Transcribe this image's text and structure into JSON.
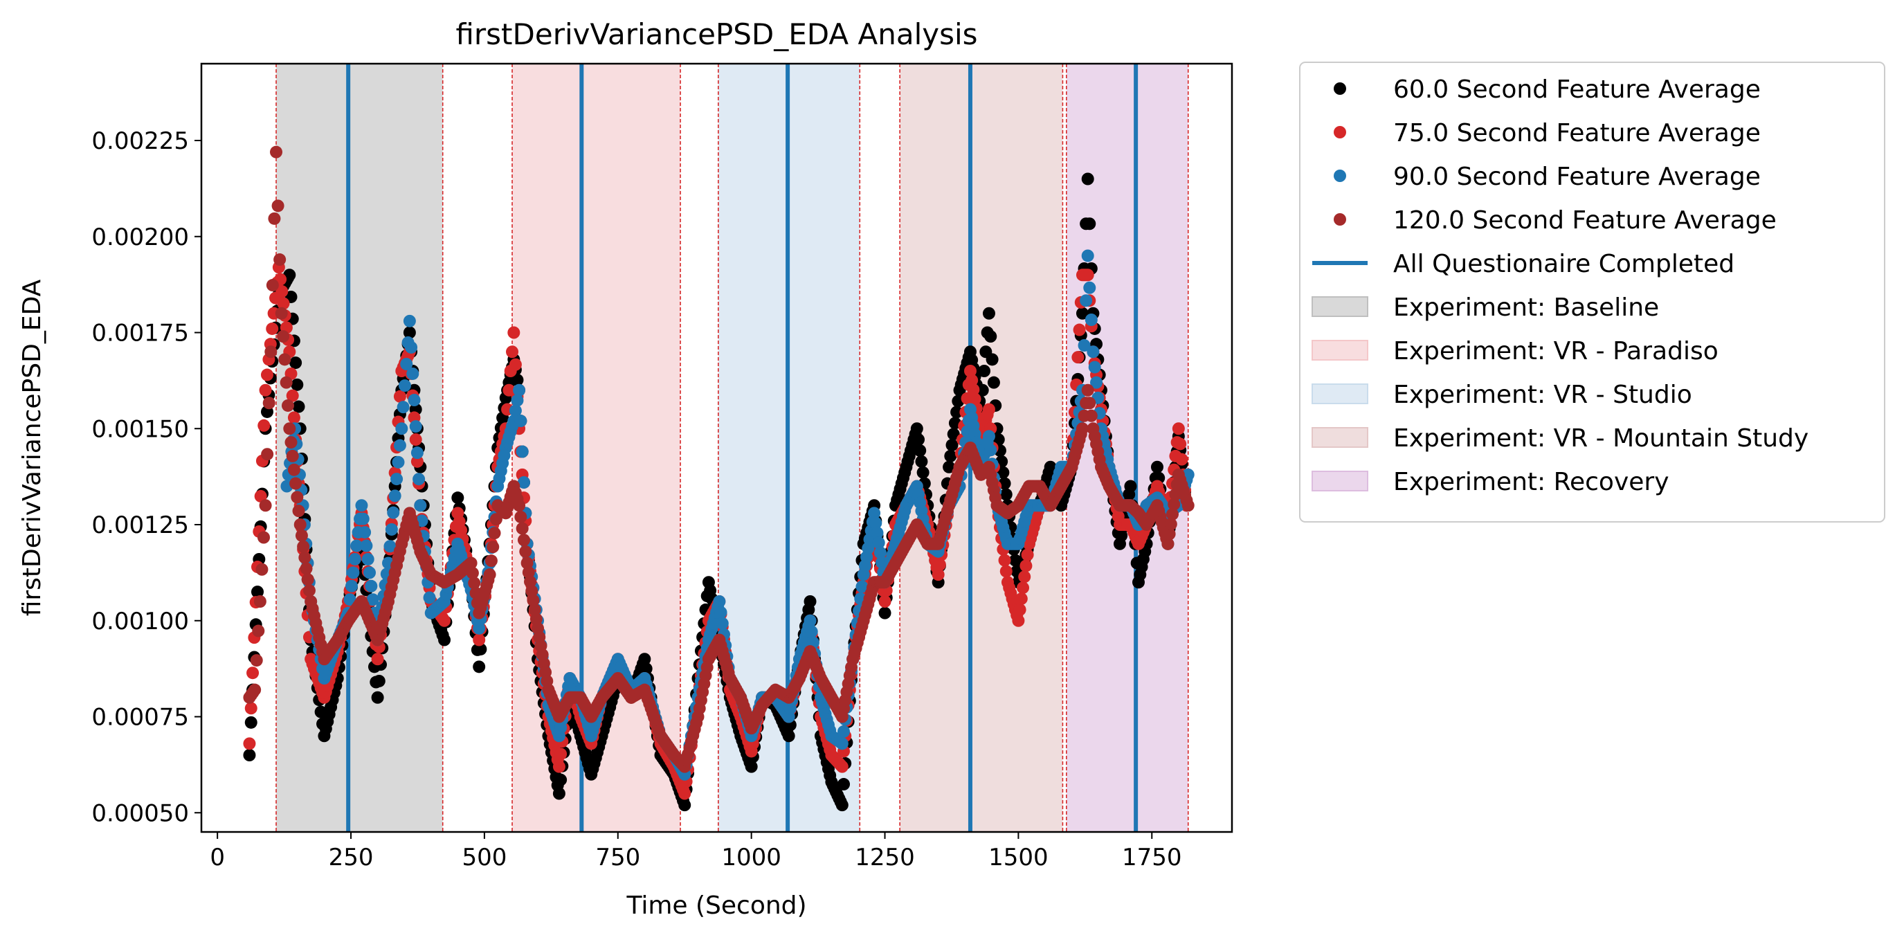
{
  "chart_data": {
    "type": "scatter",
    "title": "firstDerivVariancePSD_EDA Analysis",
    "xlabel": "Time (Second)",
    "ylabel": "firstDerivVariancePSD_EDA",
    "xlim": [
      -30,
      1900
    ],
    "ylim": [
      0.00045,
      0.00245
    ],
    "x_ticks": [
      0,
      250,
      500,
      750,
      1000,
      1250,
      1500,
      1750
    ],
    "y_ticks": [
      0.0005,
      0.00075,
      0.001,
      0.00125,
      0.0015,
      0.00175,
      0.002,
      0.00225
    ],
    "y_tick_labels": [
      "0.00050",
      "0.00075",
      "0.00100",
      "0.00125",
      "0.00150",
      "0.00175",
      "0.00200",
      "0.00225"
    ],
    "grid": false,
    "legend_position": "outside right, top",
    "experiments": [
      {
        "name": "Experiment: Baseline",
        "start": 110,
        "end": 422,
        "color": "#bfbfbf"
      },
      {
        "name": "Experiment: VR - Paradiso",
        "start": 552,
        "end": 867,
        "color": "#f4c7c9"
      },
      {
        "name": "Experiment: VR - Studio",
        "start": 938,
        "end": 1203,
        "color": "#c9dcec"
      },
      {
        "name": "Experiment: VR - Mountain Study",
        "start": 1278,
        "end": 1583,
        "color": "#e4c7c7"
      },
      {
        "name": "Experiment: Recovery",
        "start": 1590,
        "end": 1818,
        "color": "#ddbddf"
      }
    ],
    "questionnaire_label": "All Questionaire Completed",
    "questionnaire_color": "#1f77b4",
    "questionnaire_times": [
      245,
      682,
      1068,
      1410,
      1720
    ],
    "boundary_color": "#d62728",
    "boundary_times": [
      110,
      422,
      552,
      682,
      867,
      938,
      1203,
      1278,
      1583,
      1590,
      1818
    ],
    "series": [
      {
        "name": "60.0 Second Feature Average",
        "color": "#000000",
        "x": [
          60,
          90,
          115,
          135,
          155,
          175,
          200,
          225,
          245,
          270,
          300,
          320,
          345,
          360,
          380,
          400,
          425,
          450,
          475,
          490,
          510,
          525,
          540,
          555,
          565,
          580,
          600,
          620,
          640,
          660,
          680,
          700,
          720,
          750,
          775,
          800,
          830,
          855,
          875,
          900,
          920,
          940,
          960,
          980,
          1000,
          1020,
          1045,
          1070,
          1090,
          1110,
          1130,
          1150,
          1170,
          1190,
          1210,
          1230,
          1250,
          1270,
          1290,
          1310,
          1330,
          1350,
          1370,
          1390,
          1410,
          1430,
          1445,
          1460,
          1480,
          1500,
          1520,
          1540,
          1560,
          1580,
          1600,
          1620,
          1630,
          1640,
          1655,
          1670,
          1690,
          1710,
          1725,
          1740,
          1760,
          1780,
          1800,
          1815
        ],
        "y": [
          0.00065,
          0.0015,
          0.00185,
          0.0019,
          0.0015,
          0.00095,
          0.0007,
          0.00085,
          0.00105,
          0.0012,
          0.0008,
          0.0011,
          0.0016,
          0.00175,
          0.0014,
          0.00105,
          0.00095,
          0.00132,
          0.0011,
          0.00088,
          0.0012,
          0.00145,
          0.00158,
          0.00168,
          0.0016,
          0.0012,
          0.0009,
          0.0007,
          0.00055,
          0.0008,
          0.0007,
          0.0006,
          0.0007,
          0.00085,
          0.0008,
          0.0009,
          0.00065,
          0.0006,
          0.00052,
          0.00085,
          0.0011,
          0.00095,
          0.0008,
          0.0007,
          0.00062,
          0.0008,
          0.00078,
          0.0007,
          0.0009,
          0.00105,
          0.0007,
          0.00058,
          0.00052,
          0.0009,
          0.0012,
          0.0013,
          0.00102,
          0.0013,
          0.0014,
          0.0015,
          0.0013,
          0.0011,
          0.0014,
          0.0016,
          0.0017,
          0.00155,
          0.0018,
          0.0015,
          0.0013,
          0.0011,
          0.0012,
          0.0013,
          0.0014,
          0.0013,
          0.0014,
          0.0018,
          0.00215,
          0.0018,
          0.0016,
          0.0014,
          0.0012,
          0.00135,
          0.0011,
          0.0012,
          0.0014,
          0.0012,
          0.00148,
          0.0013
        ]
      },
      {
        "name": "75.0 Second Feature Average",
        "color": "#d62728",
        "x": [
          60,
          90,
          115,
          135,
          155,
          175,
          200,
          225,
          245,
          270,
          300,
          320,
          345,
          360,
          380,
          400,
          425,
          450,
          475,
          490,
          510,
          525,
          540,
          555,
          565,
          580,
          600,
          620,
          640,
          660,
          680,
          700,
          720,
          750,
          775,
          800,
          830,
          855,
          875,
          900,
          920,
          940,
          960,
          980,
          1000,
          1020,
          1045,
          1070,
          1090,
          1110,
          1130,
          1150,
          1170,
          1190,
          1210,
          1230,
          1250,
          1270,
          1290,
          1310,
          1330,
          1350,
          1370,
          1390,
          1410,
          1430,
          1445,
          1460,
          1480,
          1500,
          1520,
          1540,
          1560,
          1580,
          1600,
          1620,
          1630,
          1640,
          1655,
          1670,
          1690,
          1710,
          1725,
          1740,
          1760,
          1780,
          1800,
          1815
        ],
        "y": [
          0.00068,
          0.0016,
          0.00192,
          0.0017,
          0.0013,
          0.0009,
          0.0008,
          0.00092,
          0.00105,
          0.00128,
          0.0009,
          0.00112,
          0.00165,
          0.0017,
          0.0013,
          0.00105,
          0.001,
          0.00128,
          0.0011,
          0.00095,
          0.00115,
          0.0014,
          0.0015,
          0.00175,
          0.0015,
          0.0012,
          0.00095,
          0.00075,
          0.00062,
          0.00085,
          0.00075,
          0.00068,
          0.0008,
          0.0009,
          0.0008,
          0.00085,
          0.00068,
          0.00062,
          0.00055,
          0.0008,
          0.001,
          0.00105,
          0.00082,
          0.00075,
          0.00066,
          0.0008,
          0.0008,
          0.00075,
          0.00088,
          0.001,
          0.00075,
          0.00065,
          0.00062,
          0.0009,
          0.0011,
          0.00125,
          0.00105,
          0.00125,
          0.0013,
          0.00135,
          0.00125,
          0.00112,
          0.0013,
          0.0014,
          0.00165,
          0.00148,
          0.00155,
          0.0013,
          0.0011,
          0.001,
          0.0012,
          0.0013,
          0.0013,
          0.00135,
          0.0014,
          0.0019,
          0.0019,
          0.0017,
          0.00155,
          0.0014,
          0.00125,
          0.00125,
          0.0012,
          0.00125,
          0.00135,
          0.00125,
          0.0015,
          0.0013
        ]
      },
      {
        "name": "90.0 Second Feature Average",
        "color": "#1f77b4",
        "x": [
          130,
          145,
          160,
          175,
          200,
          225,
          245,
          270,
          300,
          320,
          345,
          360,
          380,
          400,
          425,
          450,
          475,
          490,
          510,
          525,
          540,
          555,
          565,
          580,
          600,
          620,
          640,
          660,
          680,
          700,
          720,
          750,
          775,
          800,
          830,
          855,
          875,
          900,
          920,
          940,
          960,
          980,
          1000,
          1020,
          1045,
          1070,
          1090,
          1110,
          1130,
          1150,
          1170,
          1190,
          1210,
          1230,
          1250,
          1270,
          1290,
          1310,
          1330,
          1350,
          1370,
          1390,
          1410,
          1430,
          1445,
          1460,
          1480,
          1500,
          1520,
          1540,
          1560,
          1580,
          1600,
          1620,
          1630,
          1640,
          1655,
          1670,
          1690,
          1710,
          1725,
          1740,
          1760,
          1780,
          1800,
          1818
        ],
        "y": [
          0.00135,
          0.0015,
          0.0013,
          0.00105,
          0.00085,
          0.00095,
          0.00102,
          0.0013,
          0.00095,
          0.00115,
          0.0015,
          0.00178,
          0.0013,
          0.00102,
          0.00105,
          0.0012,
          0.00108,
          0.00098,
          0.00115,
          0.00135,
          0.00145,
          0.00152,
          0.0016,
          0.0012,
          0.001,
          0.00078,
          0.0007,
          0.00085,
          0.0008,
          0.0007,
          0.0008,
          0.0009,
          0.00082,
          0.00085,
          0.0007,
          0.00065,
          0.0006,
          0.0008,
          0.00095,
          0.00105,
          0.00085,
          0.0008,
          0.0007,
          0.0008,
          0.0008,
          0.00075,
          0.0009,
          0.001,
          0.0008,
          0.0007,
          0.00068,
          0.0009,
          0.00112,
          0.00128,
          0.0011,
          0.0012,
          0.0013,
          0.00135,
          0.0012,
          0.00118,
          0.0013,
          0.00135,
          0.00155,
          0.0014,
          0.00148,
          0.0013,
          0.0012,
          0.0012,
          0.0013,
          0.0013,
          0.0013,
          0.0014,
          0.0014,
          0.0016,
          0.00195,
          0.0017,
          0.0015,
          0.0014,
          0.0013,
          0.0013,
          0.00125,
          0.0013,
          0.00132,
          0.00128,
          0.0013,
          0.00138
        ]
      },
      {
        "name": "120.0 Second Feature Average",
        "color": "#a52a2a",
        "x": [
          60,
          70,
          80,
          90,
          100,
          110,
          120,
          135,
          155,
          175,
          200,
          225,
          245,
          270,
          300,
          320,
          345,
          360,
          380,
          400,
          425,
          450,
          475,
          490,
          510,
          525,
          540,
          555,
          565,
          580,
          600,
          620,
          640,
          660,
          680,
          700,
          720,
          750,
          775,
          800,
          830,
          855,
          875,
          900,
          920,
          940,
          960,
          980,
          1000,
          1020,
          1045,
          1070,
          1090,
          1110,
          1130,
          1150,
          1170,
          1190,
          1210,
          1230,
          1250,
          1270,
          1290,
          1310,
          1330,
          1350,
          1370,
          1390,
          1410,
          1430,
          1445,
          1460,
          1480,
          1500,
          1520,
          1540,
          1560,
          1580,
          1600,
          1620,
          1630,
          1640,
          1655,
          1670,
          1690,
          1710,
          1725,
          1740,
          1760,
          1780,
          1800,
          1818
        ],
        "y": [
          0.0008,
          0.00082,
          0.00105,
          0.0013,
          0.0017,
          0.00222,
          0.0018,
          0.0015,
          0.00125,
          0.00105,
          0.0009,
          0.00095,
          0.001,
          0.00105,
          0.00095,
          0.00105,
          0.0012,
          0.00128,
          0.00118,
          0.00112,
          0.0011,
          0.00112,
          0.00115,
          0.00102,
          0.00112,
          0.0013,
          0.00128,
          0.00135,
          0.0013,
          0.00115,
          0.00098,
          0.00082,
          0.00075,
          0.0008,
          0.0008,
          0.00075,
          0.0008,
          0.00085,
          0.0008,
          0.00082,
          0.0007,
          0.00065,
          0.00062,
          0.00075,
          0.0009,
          0.00095,
          0.00085,
          0.0008,
          0.00072,
          0.00078,
          0.00082,
          0.0008,
          0.00085,
          0.00092,
          0.00085,
          0.0008,
          0.00075,
          0.0009,
          0.001,
          0.0011,
          0.0011,
          0.00115,
          0.0012,
          0.00125,
          0.0012,
          0.0012,
          0.0013,
          0.0014,
          0.00145,
          0.00138,
          0.0014,
          0.0013,
          0.00128,
          0.0013,
          0.00135,
          0.00135,
          0.0013,
          0.00135,
          0.0014,
          0.0015,
          0.0016,
          0.0015,
          0.0014,
          0.00135,
          0.0013,
          0.0013,
          0.00128,
          0.00125,
          0.0013,
          0.0012,
          0.00138,
          0.0013
        ]
      }
    ]
  }
}
